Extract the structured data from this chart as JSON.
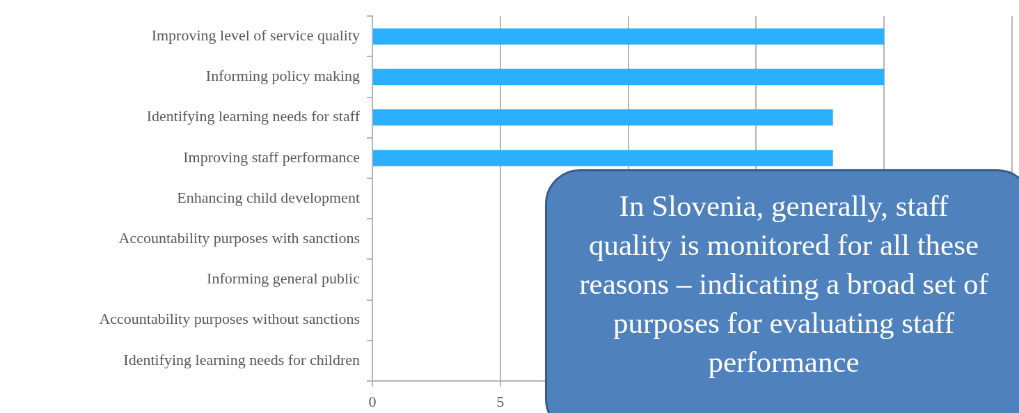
{
  "chart_data": {
    "type": "bar",
    "orientation": "horizontal",
    "categories": [
      "Improving level of service quality",
      "Informing policy making",
      "Identifying learning needs for staff",
      "Improving staff performance",
      "Enhancing child development",
      "Accountability purposes with sanctions",
      "Informing general public",
      "Accountability purposes without sanctions",
      "Identifying learning needs for children"
    ],
    "values": [
      20,
      20,
      18,
      18,
      null,
      null,
      null,
      null,
      null
    ],
    "color": "#2ab0fe",
    "xlim": [
      0,
      25
    ],
    "xticks": [
      0,
      5,
      {
        "value": 10,
        "label": null
      },
      {
        "value": 15,
        "label": null
      },
      {
        "value": 20,
        "label": null
      },
      {
        "value": 25,
        "label": null
      }
    ],
    "grid": "x",
    "legend": false,
    "annotations": [
      "In Slovenia, generally, staff quality is monitored for all these reasons – indicating a broad set of purposes for evaluating staff performance"
    ]
  }
}
